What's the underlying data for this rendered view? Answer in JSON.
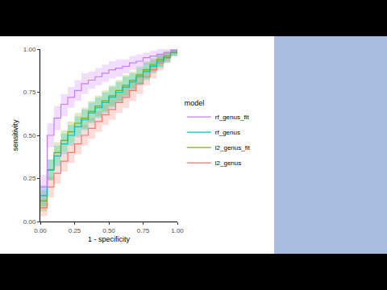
{
  "chart_data": {
    "type": "line",
    "line_style": "step",
    "x_label": "1 - specificity",
    "y_label": "sensitivity",
    "legend_title": "model",
    "legend": "right",
    "grid": false,
    "x": [
      0,
      0.05,
      0.1,
      0.15,
      0.2,
      0.25,
      0.3,
      0.35,
      0.4,
      0.45,
      0.5,
      0.55,
      0.6,
      0.65,
      0.7,
      0.75,
      0.8,
      0.85,
      0.9,
      0.95,
      1
    ],
    "xlim": [
      0,
      1
    ],
    "ylim": [
      0,
      1
    ],
    "xticks": [
      {
        "value": 0,
        "label": "0.00"
      },
      {
        "value": 0.25,
        "label": "0.25"
      },
      {
        "value": 0.5,
        "label": "0.50"
      },
      {
        "value": 0.75,
        "label": "0.75"
      },
      {
        "value": 1,
        "label": "1.00"
      }
    ],
    "yticks": [
      {
        "value": 0,
        "label": "0.00"
      },
      {
        "value": 0.25,
        "label": "0.25"
      },
      {
        "value": 0.5,
        "label": "0.50"
      },
      {
        "value": 0.75,
        "label": "0.75"
      },
      {
        "value": 1,
        "label": "1.00"
      }
    ],
    "series": [
      {
        "name": "l2_genus",
        "color": "#F8766D",
        "values": [
          0.08,
          0.2,
          0.28,
          0.35,
          0.4,
          0.45,
          0.5,
          0.54,
          0.58,
          0.62,
          0.65,
          0.69,
          0.72,
          0.76,
          0.8,
          0.84,
          0.88,
          0.92,
          0.95,
          0.98,
          1
        ],
        "lower": [
          0.03,
          0.14,
          0.22,
          0.29,
          0.34,
          0.39,
          0.44,
          0.48,
          0.52,
          0.56,
          0.59,
          0.63,
          0.66,
          0.7,
          0.74,
          0.79,
          0.83,
          0.88,
          0.92,
          0.96,
          0.99
        ],
        "upper": [
          0.13,
          0.26,
          0.34,
          0.41,
          0.46,
          0.51,
          0.56,
          0.6,
          0.64,
          0.68,
          0.71,
          0.75,
          0.78,
          0.82,
          0.86,
          0.89,
          0.93,
          0.96,
          0.98,
          1,
          1
        ]
      },
      {
        "name": "l2_genus_fit",
        "color": "#7CAE00",
        "values": [
          0.12,
          0.3,
          0.4,
          0.47,
          0.52,
          0.57,
          0.6,
          0.64,
          0.67,
          0.7,
          0.73,
          0.76,
          0.79,
          0.82,
          0.85,
          0.88,
          0.91,
          0.94,
          0.96,
          0.98,
          1
        ],
        "lower": [
          0.06,
          0.24,
          0.34,
          0.41,
          0.46,
          0.51,
          0.54,
          0.58,
          0.61,
          0.64,
          0.67,
          0.7,
          0.73,
          0.77,
          0.8,
          0.83,
          0.87,
          0.9,
          0.93,
          0.96,
          0.99
        ],
        "upper": [
          0.18,
          0.36,
          0.46,
          0.53,
          0.58,
          0.63,
          0.66,
          0.7,
          0.73,
          0.76,
          0.79,
          0.82,
          0.85,
          0.87,
          0.9,
          0.93,
          0.95,
          0.97,
          0.99,
          1,
          1
        ]
      },
      {
        "name": "rf_genus",
        "color": "#00BFC4",
        "values": [
          0.15,
          0.3,
          0.38,
          0.45,
          0.5,
          0.55,
          0.59,
          0.63,
          0.66,
          0.69,
          0.72,
          0.75,
          0.78,
          0.81,
          0.84,
          0.87,
          0.9,
          0.93,
          0.95,
          0.98,
          1
        ],
        "lower": [
          0.09,
          0.24,
          0.32,
          0.39,
          0.44,
          0.49,
          0.53,
          0.57,
          0.6,
          0.63,
          0.66,
          0.69,
          0.72,
          0.76,
          0.79,
          0.82,
          0.86,
          0.89,
          0.92,
          0.96,
          0.99
        ],
        "upper": [
          0.21,
          0.36,
          0.44,
          0.51,
          0.56,
          0.61,
          0.65,
          0.69,
          0.72,
          0.75,
          0.78,
          0.81,
          0.84,
          0.86,
          0.89,
          0.92,
          0.94,
          0.97,
          0.98,
          1,
          1
        ]
      },
      {
        "name": "rf_genus_fit",
        "color": "#C77CFF",
        "values": [
          0.2,
          0.5,
          0.6,
          0.68,
          0.72,
          0.76,
          0.8,
          0.82,
          0.84,
          0.86,
          0.88,
          0.89,
          0.9,
          0.92,
          0.93,
          0.95,
          0.96,
          0.97,
          0.98,
          0.99,
          1
        ],
        "lower": [
          0.13,
          0.43,
          0.53,
          0.61,
          0.66,
          0.7,
          0.74,
          0.77,
          0.79,
          0.81,
          0.83,
          0.84,
          0.86,
          0.88,
          0.89,
          0.91,
          0.93,
          0.95,
          0.96,
          0.98,
          0.99
        ],
        "upper": [
          0.27,
          0.57,
          0.67,
          0.74,
          0.78,
          0.82,
          0.86,
          0.87,
          0.89,
          0.91,
          0.93,
          0.94,
          0.94,
          0.96,
          0.97,
          0.98,
          0.99,
          1,
          1,
          1,
          1
        ]
      }
    ]
  }
}
